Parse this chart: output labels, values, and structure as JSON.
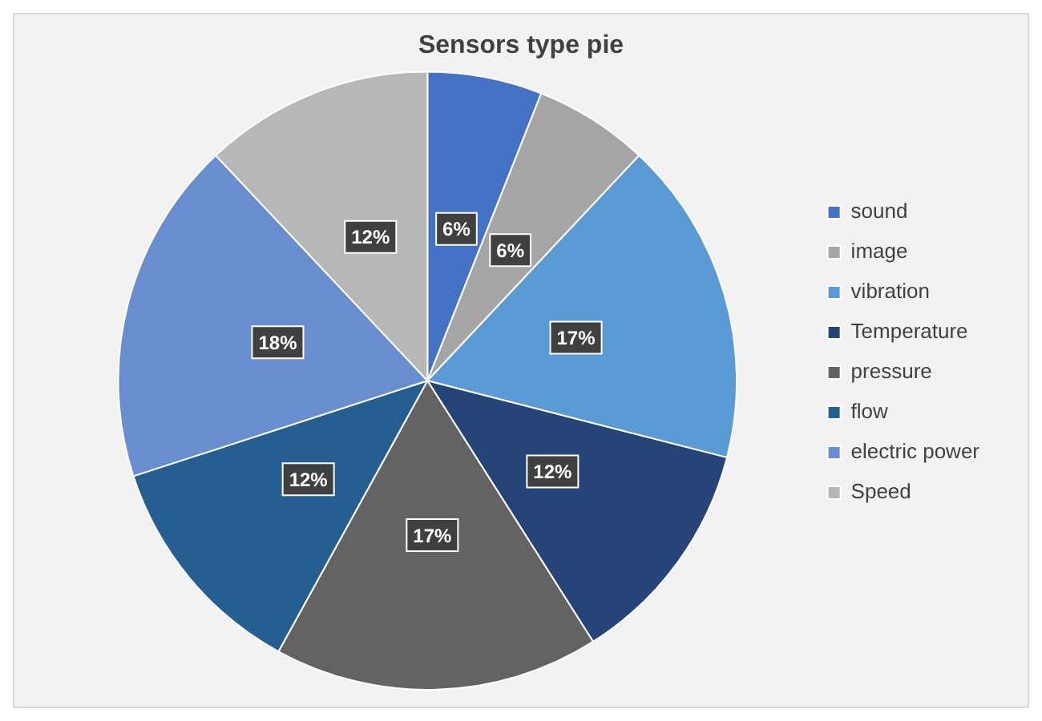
{
  "chart_data": {
    "type": "pie",
    "title": "Sensors type pie",
    "categories": [
      "sound",
      "image",
      "vibration",
      "Temperature",
      "pressure",
      "flow",
      "electric power",
      "Speed"
    ],
    "values": [
      6,
      6,
      17,
      12,
      17,
      12,
      18,
      12
    ],
    "colors": [
      "#4472c4",
      "#a5a5a5",
      "#5b9bd5",
      "#264478",
      "#636363",
      "#255e91",
      "#698ed0",
      "#b7b7b7"
    ],
    "value_labels": [
      "6%",
      "6%",
      "17%",
      "12%",
      "17%",
      "12%",
      "18%",
      "12%"
    ],
    "legend": "right"
  }
}
